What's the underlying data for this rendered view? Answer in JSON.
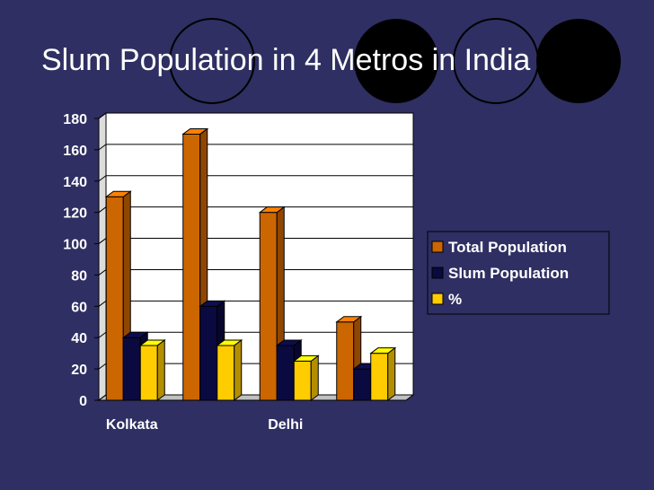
{
  "slide": {
    "title": "Slum Population in 4 Metros in India",
    "background": "#2f2f63",
    "circle_color": "#000000"
  },
  "chart_data": {
    "type": "bar",
    "style": "3d-clustered",
    "title": "",
    "xlabel": "",
    "ylabel": "",
    "categories": [
      "Kolkata",
      "",
      "Delhi",
      ""
    ],
    "series": [
      {
        "name": "Total Population",
        "values": [
          130,
          170,
          120,
          50
        ],
        "color": "#cc6600"
      },
      {
        "name": "Slum Population",
        "values": [
          40,
          60,
          35,
          20
        ],
        "color": "#0a0a40"
      },
      {
        "name": "%",
        "values": [
          35,
          35,
          25,
          30
        ],
        "color": "#ffcc00"
      }
    ],
    "ylim": [
      0,
      180
    ],
    "yticks": [
      "0",
      "20",
      "40",
      "60",
      "80",
      "100",
      "120",
      "140",
      "160",
      "180"
    ],
    "grid": true,
    "legend_position": "right",
    "text_color": "#ffffff"
  }
}
